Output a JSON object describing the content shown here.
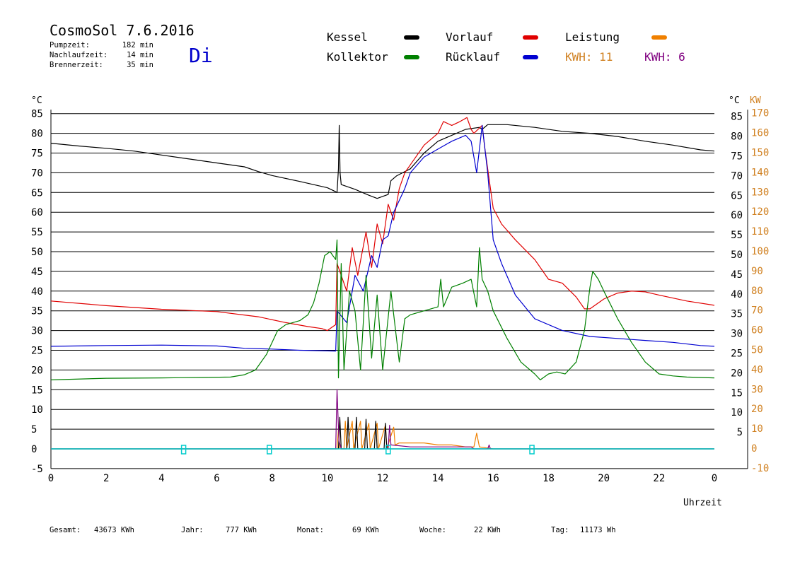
{
  "header": {
    "title": "CosmoSol 7.6.2016",
    "day": "Di",
    "stats": [
      {
        "label": "Pumpzeit:",
        "value": "182 min"
      },
      {
        "label": "Nachlaufzeit:",
        "value": "14 min"
      },
      {
        "label": "Brennerzeit:",
        "value": "35 min"
      }
    ]
  },
  "legend": {
    "items": [
      {
        "label": "Kessel",
        "color": "#000000"
      },
      {
        "label": "Vorlauf",
        "color": "#e00000"
      },
      {
        "label": "Leistung",
        "color": "#f08000"
      },
      {
        "label": "Kollektor",
        "color": "#008000"
      },
      {
        "label": "Rücklauf",
        "color": "#0000d0"
      }
    ],
    "kwh": [
      {
        "text": "KWH: 11",
        "color": "#d08020"
      },
      {
        "text": "KWH: 6",
        "color": "#800080"
      }
    ]
  },
  "footer": [
    {
      "label": "Gesamt:",
      "value": "43673 KWh"
    },
    {
      "label": "Jahr:",
      "value": "777 KWh"
    },
    {
      "label": "Monat:",
      "value": "69 KWh"
    },
    {
      "label": "Woche:",
      "value": "22 KWh"
    },
    {
      "label": "Tag:",
      "value": "11173 Wh"
    }
  ],
  "chart_data": {
    "type": "line",
    "xlabel": "Uhrzeit",
    "x_ticks": [
      "0",
      "2",
      "4",
      "6",
      "8",
      "10",
      "12",
      "14",
      "16",
      "18",
      "20",
      "22",
      "0"
    ],
    "xlim": [
      0,
      24
    ],
    "left_axis": {
      "unit": "°C",
      "ticks": [
        85,
        80,
        75,
        70,
        65,
        60,
        55,
        50,
        45,
        40,
        35,
        30,
        25,
        20,
        15,
        10,
        5,
        0,
        -5
      ]
    },
    "right_axis_temp": {
      "unit": "°C",
      "ticks": [
        85,
        80,
        75,
        70,
        65,
        60,
        55,
        50,
        45,
        40,
        35,
        30,
        25,
        20,
        15,
        10,
        5
      ]
    },
    "right_axis_power": {
      "unit": "KW",
      "ticks": [
        170,
        160,
        150,
        140,
        130,
        120,
        110,
        100,
        90,
        80,
        70,
        60,
        50,
        40,
        30,
        20,
        10,
        0,
        -10
      ]
    },
    "ylim": [
      -5,
      85
    ],
    "grid": "horizontal",
    "series": [
      {
        "name": "Kessel",
        "color": "#000000",
        "points": [
          [
            0,
            77.5
          ],
          [
            1,
            76.8
          ],
          [
            2,
            76.2
          ],
          [
            3,
            75.5
          ],
          [
            4,
            74.5
          ],
          [
            5,
            73.5
          ],
          [
            6,
            72.5
          ],
          [
            7,
            71.5
          ],
          [
            7.5,
            70.3
          ],
          [
            8,
            69.3
          ],
          [
            9,
            67.8
          ],
          [
            10,
            66.2
          ],
          [
            10.3,
            65.2
          ],
          [
            10.35,
            65
          ],
          [
            10.4,
            71
          ],
          [
            10.43,
            82
          ],
          [
            10.46,
            70
          ],
          [
            10.5,
            67
          ],
          [
            11,
            65.8
          ],
          [
            11.5,
            64.3
          ],
          [
            11.8,
            63.5
          ],
          [
            12.2,
            64.5
          ],
          [
            12.3,
            68
          ],
          [
            12.5,
            69.2
          ],
          [
            13,
            71
          ],
          [
            13.5,
            75
          ],
          [
            14,
            78
          ],
          [
            14.5,
            79.5
          ],
          [
            15,
            81
          ],
          [
            15.5,
            81.5
          ],
          [
            15.6,
            81
          ],
          [
            15.8,
            82.2
          ],
          [
            16.5,
            82.2
          ],
          [
            17.5,
            81.5
          ],
          [
            18.5,
            80.5
          ],
          [
            19.5,
            80
          ],
          [
            20.5,
            79.2
          ],
          [
            21.5,
            78
          ],
          [
            22.5,
            77
          ],
          [
            23.5,
            75.8
          ],
          [
            24,
            75.5
          ]
        ]
      },
      {
        "name": "Vorlauf",
        "color": "#e00000",
        "points": [
          [
            0,
            37.5
          ],
          [
            2,
            36.3
          ],
          [
            4,
            35.4
          ],
          [
            6,
            34.8
          ],
          [
            7.5,
            33.5
          ],
          [
            8.5,
            32
          ],
          [
            9.3,
            31
          ],
          [
            9.8,
            30.5
          ],
          [
            10,
            30
          ],
          [
            10.2,
            31
          ],
          [
            10.3,
            31.5
          ],
          [
            10.35,
            47
          ],
          [
            10.7,
            40
          ],
          [
            10.9,
            51
          ],
          [
            11.1,
            44
          ],
          [
            11.4,
            55
          ],
          [
            11.6,
            46
          ],
          [
            11.8,
            57
          ],
          [
            12,
            52
          ],
          [
            12.2,
            62
          ],
          [
            12.4,
            58
          ],
          [
            12.6,
            66
          ],
          [
            12.8,
            70
          ],
          [
            13,
            72
          ],
          [
            13.5,
            77
          ],
          [
            14,
            80
          ],
          [
            14.2,
            83
          ],
          [
            14.5,
            82
          ],
          [
            14.8,
            83
          ],
          [
            15.05,
            84
          ],
          [
            15.2,
            81
          ],
          [
            15.3,
            80
          ],
          [
            15.6,
            82
          ],
          [
            15.7,
            76
          ],
          [
            16,
            61
          ],
          [
            16.3,
            57
          ],
          [
            16.8,
            53
          ],
          [
            17.5,
            48
          ],
          [
            18,
            43
          ],
          [
            18.5,
            42
          ],
          [
            19,
            38.5
          ],
          [
            19.3,
            35.5
          ],
          [
            19.5,
            35.5
          ],
          [
            20,
            38
          ],
          [
            20.5,
            39.5
          ],
          [
            21,
            40
          ],
          [
            21.5,
            39.8
          ],
          [
            22,
            39
          ],
          [
            23,
            37.5
          ],
          [
            24,
            36.4
          ]
        ]
      },
      {
        "name": "Rücklauf",
        "color": "#0000d0",
        "points": [
          [
            0,
            26
          ],
          [
            2,
            26.2
          ],
          [
            4,
            26.3
          ],
          [
            6,
            26.1
          ],
          [
            7,
            25.5
          ],
          [
            8,
            25.3
          ],
          [
            9,
            25
          ],
          [
            10.3,
            24.8
          ],
          [
            10.35,
            35
          ],
          [
            10.7,
            32
          ],
          [
            11,
            44
          ],
          [
            11.3,
            40
          ],
          [
            11.6,
            49
          ],
          [
            11.8,
            46
          ],
          [
            12,
            53
          ],
          [
            12.2,
            54
          ],
          [
            12.4,
            60
          ],
          [
            12.6,
            63
          ],
          [
            12.8,
            66
          ],
          [
            13,
            70
          ],
          [
            13.5,
            74
          ],
          [
            14,
            76
          ],
          [
            14.5,
            78
          ],
          [
            15,
            79.5
          ],
          [
            15.2,
            78
          ],
          [
            15.4,
            70
          ],
          [
            15.6,
            82
          ],
          [
            15.8,
            70
          ],
          [
            16,
            53
          ],
          [
            16.3,
            47
          ],
          [
            16.8,
            39
          ],
          [
            17.5,
            33
          ],
          [
            18.5,
            30
          ],
          [
            19.5,
            28.5
          ],
          [
            20.5,
            28
          ],
          [
            21.5,
            27.5
          ],
          [
            22.5,
            27
          ],
          [
            23.5,
            26.2
          ],
          [
            24,
            26
          ]
        ]
      },
      {
        "name": "Kollektor",
        "color": "#008000",
        "points": [
          [
            0,
            17.5
          ],
          [
            2,
            17.9
          ],
          [
            4,
            18
          ],
          [
            5.5,
            18.1
          ],
          [
            6.5,
            18.2
          ],
          [
            7,
            18.8
          ],
          [
            7.4,
            20
          ],
          [
            7.8,
            24
          ],
          [
            8.2,
            30
          ],
          [
            8.5,
            31.5
          ],
          [
            9,
            32.5
          ],
          [
            9.3,
            34
          ],
          [
            9.5,
            37
          ],
          [
            9.7,
            42
          ],
          [
            9.9,
            49
          ],
          [
            10.1,
            50
          ],
          [
            10.2,
            49
          ],
          [
            10.3,
            48
          ],
          [
            10.35,
            53
          ],
          [
            10.4,
            18
          ],
          [
            10.5,
            47
          ],
          [
            10.6,
            20
          ],
          [
            10.8,
            40
          ],
          [
            11,
            35
          ],
          [
            11.2,
            20
          ],
          [
            11.4,
            44
          ],
          [
            11.6,
            23
          ],
          [
            11.8,
            39
          ],
          [
            12,
            20
          ],
          [
            12.3,
            40
          ],
          [
            12.6,
            22
          ],
          [
            12.8,
            33
          ],
          [
            13,
            34
          ],
          [
            13.5,
            35
          ],
          [
            14,
            36
          ],
          [
            14.1,
            43
          ],
          [
            14.2,
            36
          ],
          [
            14.5,
            41
          ],
          [
            14.9,
            42
          ],
          [
            15.2,
            43
          ],
          [
            15.4,
            36
          ],
          [
            15.5,
            51
          ],
          [
            15.6,
            43
          ],
          [
            15.8,
            40
          ],
          [
            16,
            35
          ],
          [
            16.5,
            28
          ],
          [
            17,
            22
          ],
          [
            17.5,
            19
          ],
          [
            17.7,
            17.5
          ],
          [
            18,
            19
          ],
          [
            18.3,
            19.5
          ],
          [
            18.6,
            19
          ],
          [
            19,
            22
          ],
          [
            19.3,
            30
          ],
          [
            19.5,
            41
          ],
          [
            19.6,
            45
          ],
          [
            19.8,
            43
          ],
          [
            20,
            40
          ],
          [
            20.5,
            33
          ],
          [
            21,
            27
          ],
          [
            21.5,
            22
          ],
          [
            22,
            19
          ],
          [
            22.5,
            18.5
          ],
          [
            23,
            18.2
          ],
          [
            24,
            18
          ]
        ]
      },
      {
        "name": "Leistung",
        "color": "#f08000",
        "points": [
          [
            0,
            0
          ],
          [
            10.35,
            0
          ],
          [
            10.4,
            5
          ],
          [
            10.45,
            0
          ],
          [
            10.6,
            0
          ],
          [
            10.65,
            7
          ],
          [
            10.7,
            0
          ],
          [
            10.9,
            7
          ],
          [
            10.95,
            0
          ],
          [
            11.2,
            7
          ],
          [
            11.25,
            0
          ],
          [
            11.5,
            6.5
          ],
          [
            11.55,
            0
          ],
          [
            11.8,
            6.5
          ],
          [
            11.85,
            0
          ],
          [
            12.1,
            6
          ],
          [
            12.15,
            0
          ],
          [
            12.4,
            5.5
          ],
          [
            12.45,
            1
          ],
          [
            12.6,
            1.5
          ],
          [
            13.5,
            1.5
          ],
          [
            14,
            1
          ],
          [
            14.5,
            1
          ],
          [
            15,
            0.5
          ],
          [
            15.3,
            0.5
          ],
          [
            15.4,
            4
          ],
          [
            15.5,
            0.5
          ],
          [
            16,
            0
          ],
          [
            24,
            0
          ]
        ]
      },
      {
        "name": "Brenner",
        "color": "#000000",
        "points": [
          [
            0,
            0
          ],
          [
            10.4,
            0
          ],
          [
            10.45,
            8
          ],
          [
            10.5,
            0
          ],
          [
            10.7,
            0
          ],
          [
            10.75,
            8
          ],
          [
            10.8,
            0
          ],
          [
            11,
            0
          ],
          [
            11.05,
            8
          ],
          [
            11.1,
            0
          ],
          [
            11.35,
            0
          ],
          [
            11.4,
            7.5
          ],
          [
            11.45,
            0
          ],
          [
            11.7,
            0
          ],
          [
            11.75,
            7
          ],
          [
            11.8,
            0
          ],
          [
            12.05,
            0
          ],
          [
            12.1,
            6.5
          ],
          [
            12.15,
            0
          ],
          [
            24,
            0
          ]
        ]
      },
      {
        "name": "KWH",
        "color": "#800080",
        "points": [
          [
            0,
            0
          ],
          [
            10.3,
            0
          ],
          [
            10.35,
            15
          ],
          [
            10.42,
            2
          ],
          [
            10.5,
            0
          ],
          [
            12.2,
            0
          ],
          [
            12.25,
            6
          ],
          [
            12.3,
            1
          ],
          [
            13,
            0.5
          ],
          [
            14,
            0.5
          ],
          [
            15.2,
            0.5
          ],
          [
            15.3,
            0
          ],
          [
            15.8,
            0
          ],
          [
            15.85,
            1
          ],
          [
            15.9,
            0
          ],
          [
            24,
            0
          ]
        ]
      },
      {
        "name": "Status",
        "color": "#00cccc",
        "points": [
          [
            0,
            0
          ],
          [
            24,
            0
          ]
        ]
      }
    ],
    "status_markers_x": [
      4.8,
      7.9,
      12.2,
      17.4
    ]
  }
}
